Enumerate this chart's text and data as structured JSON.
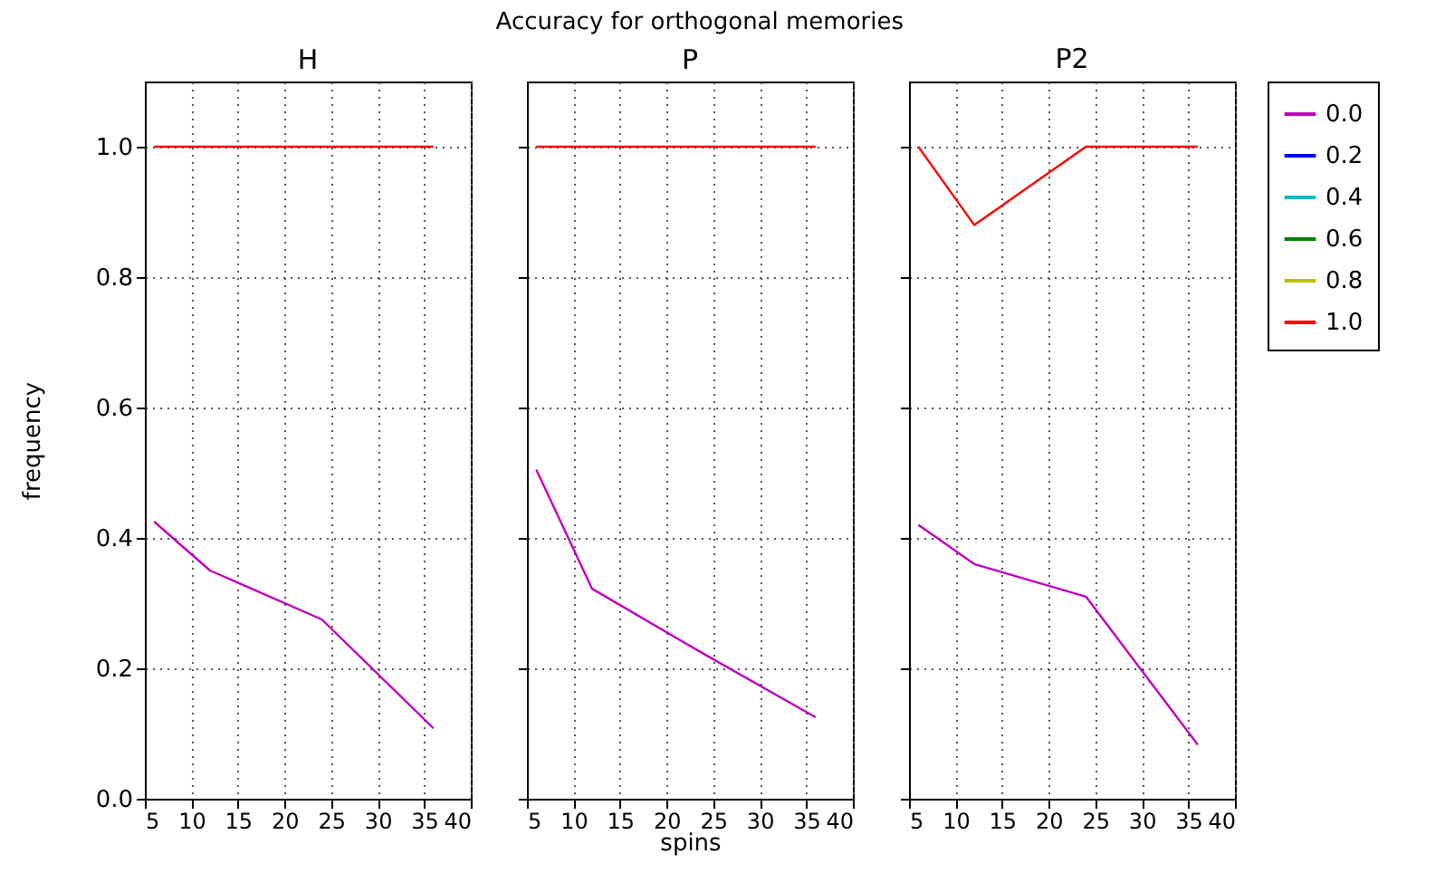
{
  "chart_data": [
    {
      "type": "line",
      "title": "H",
      "ylabel": "frequency",
      "annotations": [
        "Accuracy for orthogonal memories"
      ],
      "x": [
        6,
        12,
        24,
        36
      ],
      "xlim": [
        5,
        40
      ],
      "xticks": [
        5,
        10,
        15,
        20,
        25,
        30,
        35,
        40
      ],
      "ylim": [
        0,
        1.1
      ],
      "yticks": [
        {
          "value": 0,
          "label": "0.0"
        },
        {
          "value": 0.2,
          "label": "0.2"
        },
        {
          "value": 0.4,
          "label": "0.4"
        },
        {
          "value": 0.6,
          "label": "0.6"
        },
        {
          "value": 0.8,
          "label": "0.8"
        },
        {
          "value": 1,
          "label": "1.0"
        }
      ],
      "grid": true,
      "line_style": "solid",
      "series": [
        {
          "color": "#bf00bf",
          "values": [
            0.425,
            0.35,
            0.275,
            0.108
          ]
        },
        {
          "color": "#ff0000",
          "values": [
            1,
            1,
            1,
            1
          ]
        }
      ]
    },
    {
      "type": "line",
      "title": "P",
      "xlabel": "spins",
      "x": [
        6,
        12,
        24,
        36
      ],
      "xlim": [
        5,
        40
      ],
      "xticks": [
        5,
        10,
        15,
        20,
        25,
        30,
        35,
        40
      ],
      "ylim": [
        0,
        1.1
      ],
      "yticks": [
        0,
        0.2,
        0.4,
        0.6,
        0.8,
        1
      ],
      "grid": true,
      "line_style": "solid",
      "tick_labels": "x",
      "series": [
        {
          "color": "#bf00bf",
          "values": [
            0.505,
            0.322,
            0.222,
            0.125
          ]
        },
        {
          "color": "#ff0000",
          "values": [
            1,
            1,
            1,
            1
          ]
        }
      ]
    },
    {
      "type": "line",
      "title": "P2",
      "x": [
        6,
        12,
        24,
        36
      ],
      "xlim": [
        5,
        40
      ],
      "xticks": [
        5,
        10,
        15,
        20,
        25,
        30,
        35,
        40
      ],
      "ylim": [
        0,
        1.1
      ],
      "yticks": [
        0,
        0.2,
        0.4,
        0.6,
        0.8,
        1
      ],
      "grid": true,
      "line_style": "solid",
      "tick_labels": "x",
      "legend": "right",
      "series": [
        {
          "name": "0.0",
          "color": "#bf00bf",
          "values": [
            0.42,
            0.36,
            0.31,
            0.083
          ]
        },
        {
          "name": "0.2",
          "color": "#0000ff",
          "values": [
            null,
            null,
            null,
            null
          ]
        },
        {
          "name": "0.4",
          "color": "#00bfbf",
          "values": [
            null,
            null,
            null,
            null
          ]
        },
        {
          "name": "0.6",
          "color": "#008000",
          "values": [
            null,
            null,
            null,
            null
          ]
        },
        {
          "name": "0.8",
          "color": "#bfbf00",
          "values": [
            null,
            null,
            null,
            null
          ]
        },
        {
          "name": "1.0",
          "color": "#ff0000",
          "values": [
            1,
            0.88,
            1,
            1
          ]
        }
      ]
    }
  ]
}
